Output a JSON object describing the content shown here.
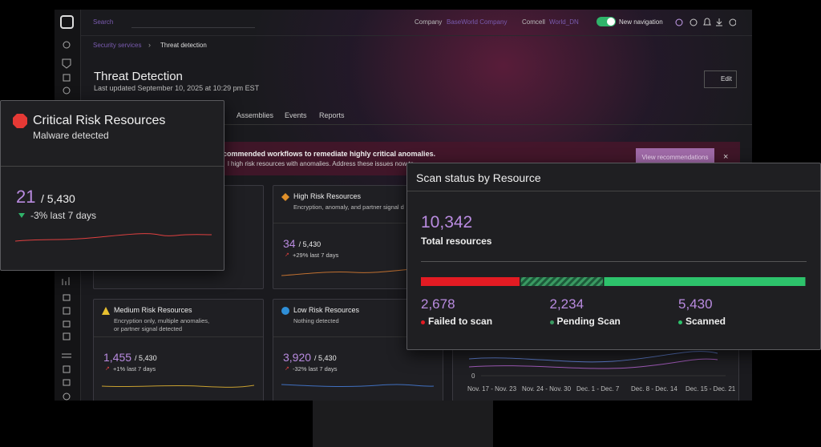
{
  "topbar": {
    "search": "Search",
    "company_label": "Company",
    "company": "BaseWorld Company",
    "env_label": "Comcell",
    "env": "World_DN",
    "toggle": "New navigation"
  },
  "breadcrumb": [
    "Security services",
    "Threat detection"
  ],
  "header": {
    "title": "Threat Detection",
    "updated": "Last updated September 10, 2025 at 10:29 pm EST",
    "edit": "Edit"
  },
  "tabs": [
    "Assemblies",
    "Events",
    "Reports"
  ],
  "banner": {
    "title": "commended workflows to remediate highly critical anomalies.",
    "text": "l high risk resources with anomalies. Address these issues now to",
    "action": "View recommendations"
  },
  "cards": [
    {
      "title": "High Risk Resources",
      "subtitle": [
        "Encryption, anomaly, and partner signal d"
      ],
      "value": "34",
      "total": "/ 5,430",
      "change": "+29% last 7 days"
    },
    {
      "title": "Medium Risk Resources",
      "subtitle": [
        "Encryption only, multiple anomalies,",
        "or partner signal detected"
      ],
      "value": "1,455",
      "total": "/ 5,430",
      "change": "+1% last 7 days"
    },
    {
      "title": "Low Risk Resources",
      "subtitle": [
        "Nothing detected"
      ],
      "value": "3,920",
      "total": "/ 5,430",
      "change": "-32% last 7 days"
    }
  ],
  "trend_chart": {
    "y_label": "0",
    "x_labels": [
      "Nov. 17 - Nov. 23",
      "Nov. 24 - Nov. 30",
      "Dec. 1 - Dec. 7",
      "Dec. 8 - Dec. 14",
      "Dec. 15 - Dec. 21"
    ]
  },
  "critical_card": {
    "title": "Critical Risk Resources",
    "subtitle": "Malware detected",
    "value": "21",
    "total": "/ 5,430",
    "change": "-3% last 7 days"
  },
  "scan_status": {
    "title": "Scan status by Resource",
    "total": "10,342",
    "total_label": "Total resources",
    "segments": [
      {
        "value": 2678,
        "label": "2,678",
        "name": "Failed to scan"
      },
      {
        "value": 2234,
        "label": "2,234",
        "name": "Pending Scan"
      },
      {
        "value": 5430,
        "label": "5,430",
        "name": "Scanned"
      }
    ]
  }
}
